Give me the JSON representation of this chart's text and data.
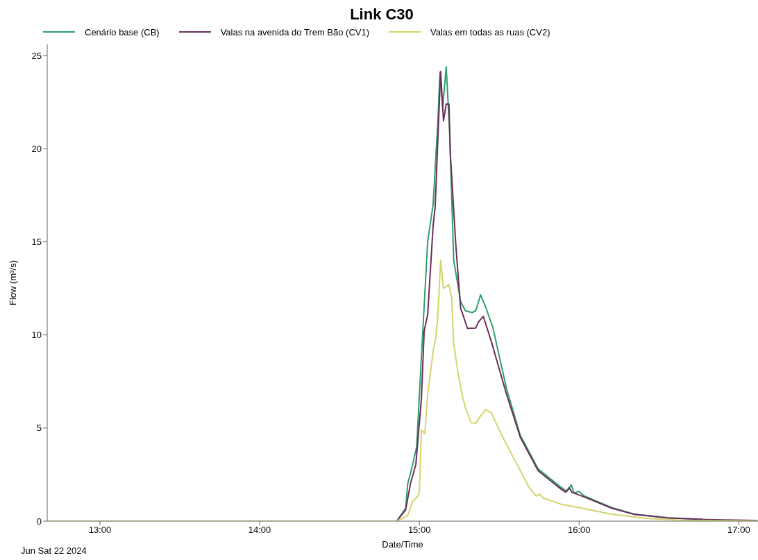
{
  "chart_data": {
    "type": "line",
    "title": "Link C30",
    "xlabel": "Date/Time",
    "ylabel": "Flow (m³/s)",
    "annotations": [
      "Jun Sat 22 2024"
    ],
    "xlim": [
      12.67,
      17.12
    ],
    "xticks": [
      {
        "value": 13,
        "label": "13:00"
      },
      {
        "value": 14,
        "label": "14:00"
      },
      {
        "value": 15,
        "label": "15:00"
      },
      {
        "value": 16,
        "label": "16:00"
      },
      {
        "value": 17,
        "label": "17:00"
      }
    ],
    "ylim": [
      0,
      25.6
    ],
    "yticks": [
      0,
      5,
      10,
      15,
      20,
      25
    ],
    "grid": false,
    "legend": "top",
    "marker": "none",
    "line_style": "solid",
    "series": [
      {
        "name": "Cenário base (CB)",
        "color": "#2e9e6b",
        "x": [
          12.67,
          14.858,
          14.914,
          14.927,
          14.957,
          14.983,
          15.017,
          15.052,
          15.086,
          15.116,
          15.129,
          15.146,
          15.168,
          15.189,
          15.215,
          15.258,
          15.288,
          15.331,
          15.353,
          15.383,
          15.417,
          15.46,
          15.546,
          15.632,
          15.744,
          15.89,
          15.925,
          15.951,
          15.968,
          15.998,
          16.032,
          16.204,
          16.346,
          16.561,
          16.776
        ],
        "values": [
          0,
          0,
          0.7,
          2.0,
          3.0,
          4.0,
          9.5,
          15,
          17,
          21.5,
          24.1,
          22.2,
          24.4,
          21,
          14,
          11.8,
          11.3,
          11.2,
          11.3,
          12.15,
          11.45,
          10.4,
          7.1,
          4.6,
          2.8,
          1.8,
          1.6,
          1.95,
          1.5,
          1.6,
          1.35,
          0.73,
          0.37,
          0.18,
          0.1
        ]
      },
      {
        "name": "Valas na avenida do Trem Bão (CV1)",
        "color": "#6b2d5c",
        "x": [
          12.67,
          14.858,
          14.914,
          14.944,
          14.978,
          15.013,
          15.03,
          15.052,
          15.086,
          15.099,
          15.112,
          15.133,
          15.151,
          15.168,
          15.185,
          15.194,
          15.228,
          15.258,
          15.301,
          15.353,
          15.37,
          15.4,
          15.43,
          15.452,
          15.546,
          15.632,
          15.744,
          15.89,
          15.916,
          15.938,
          15.955,
          16.032,
          16.204,
          16.346,
          16.561,
          16.776,
          17.116
        ],
        "values": [
          0,
          0,
          0.6,
          2.0,
          3.05,
          6.6,
          10.2,
          11.1,
          15.85,
          16.9,
          19.7,
          24.15,
          21.5,
          22.4,
          22.4,
          19.7,
          14.85,
          11.45,
          10.35,
          10.37,
          10.7,
          11.0,
          10.2,
          9.6,
          6.8,
          4.5,
          2.7,
          1.7,
          1.55,
          1.8,
          1.55,
          1.3,
          0.7,
          0.36,
          0.17,
          0.09,
          0.04
        ]
      },
      {
        "name": "Valas em todas as ruas (CV2)",
        "color": "#d4d46a",
        "x": [
          12.67,
          14.858,
          14.927,
          14.957,
          14.991,
          15.0,
          15.013,
          15.034,
          15.052,
          15.086,
          15.103,
          15.116,
          15.133,
          15.151,
          15.185,
          15.202,
          15.215,
          15.245,
          15.267,
          15.288,
          15.323,
          15.353,
          15.374,
          15.417,
          15.452,
          15.516,
          15.602,
          15.688,
          15.731,
          15.753,
          15.774,
          15.89,
          15.998,
          16.204,
          16.419,
          16.634,
          17.116
        ],
        "values": [
          0,
          0,
          0.3,
          1.05,
          1.35,
          1.6,
          4.9,
          4.7,
          6.8,
          9.1,
          9.85,
          11.1,
          14.0,
          12.5,
          12.7,
          12.0,
          9.5,
          7.8,
          6.8,
          6.1,
          5.3,
          5.25,
          5.55,
          6.0,
          5.8,
          4.6,
          3.2,
          1.8,
          1.35,
          1.45,
          1.25,
          0.9,
          0.73,
          0.37,
          0.15,
          0.05,
          0.02
        ]
      }
    ]
  }
}
